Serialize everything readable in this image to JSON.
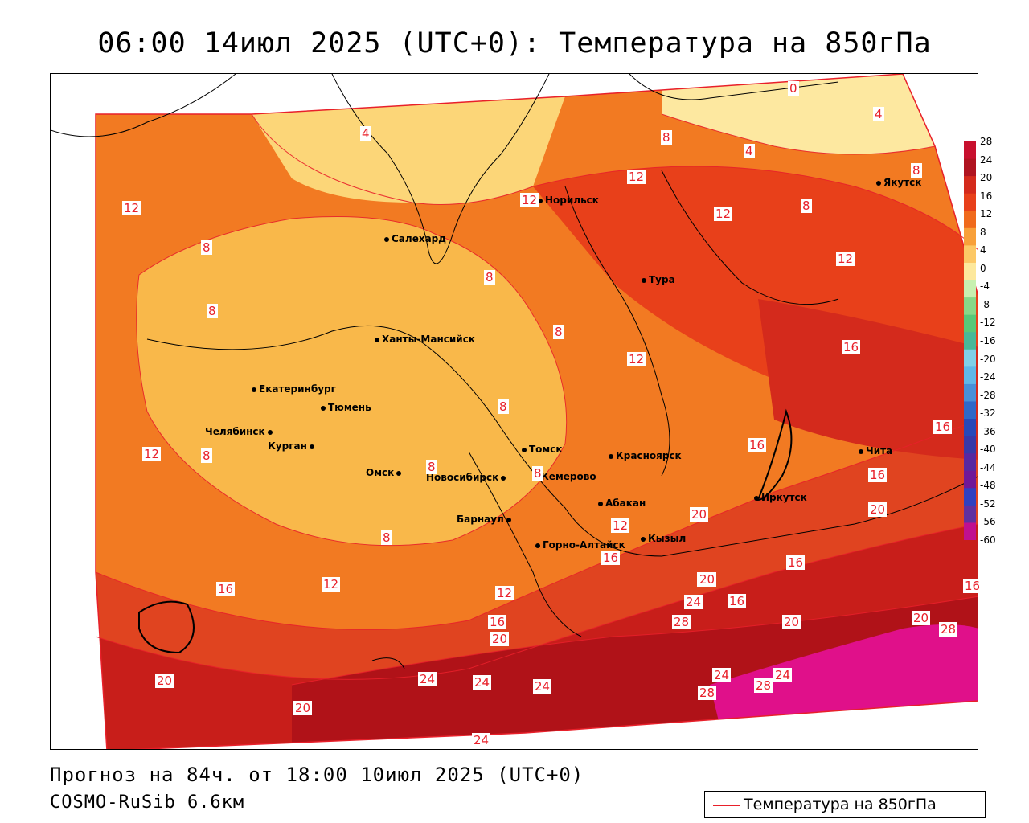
{
  "title": "06:00 14июл 2025 (UTC+0): Температура на 850гПа",
  "footer": {
    "forecast": "Прогноз на 84ч. от 18:00 10июл 2025 (UTC+0)",
    "model": "COSMO-RuSib 6.6км"
  },
  "legend": {
    "label": "Температура на 850гПа",
    "line_color": "#e8202a"
  },
  "colorbar": {
    "ticks": [
      "28",
      "24",
      "20",
      "16",
      "12",
      "8",
      "4",
      "0",
      "-4",
      "-8",
      "-12",
      "-16",
      "-20",
      "-24",
      "-28",
      "-32",
      "-36",
      "-40",
      "-44",
      "-48",
      "-52",
      "-56",
      "-60"
    ],
    "colors": [
      "#c8102e",
      "#b01420",
      "#d42a1c",
      "#e8401a",
      "#f06a1c",
      "#f8a03a",
      "#fcc866",
      "#fde89c",
      "#c8f0b0",
      "#88d888",
      "#58c878",
      "#48b898",
      "#80d0e8",
      "#60b8e8",
      "#4890d8",
      "#3068c8",
      "#2848b8",
      "#3838a8",
      "#5828a0",
      "#701898",
      "#3040c0",
      "#6030a0",
      "#c01090"
    ]
  },
  "cities": [
    {
      "name": "Норильск"
    },
    {
      "name": "Якутск"
    },
    {
      "name": "Салехард"
    },
    {
      "name": "Тура"
    },
    {
      "name": "Ханты-Мансийск"
    },
    {
      "name": "Екатеринбург"
    },
    {
      "name": "Тюмень"
    },
    {
      "name": "Челябинск"
    },
    {
      "name": "Курган"
    },
    {
      "name": "Омск"
    },
    {
      "name": "Новосибирск"
    },
    {
      "name": "Томск"
    },
    {
      "name": "Кемерово"
    },
    {
      "name": "Красноярск"
    },
    {
      "name": "Абакан"
    },
    {
      "name": "Барнаул"
    },
    {
      "name": "Горно-Алтайск"
    },
    {
      "name": "Кызыл"
    },
    {
      "name": "Иркутск"
    },
    {
      "name": "Чита"
    }
  ],
  "contour_labels": [
    "0",
    "4",
    "4",
    "4",
    "8",
    "8",
    "12",
    "12",
    "12",
    "12",
    "8",
    "8",
    "8",
    "8",
    "8",
    "8",
    "12",
    "16",
    "16",
    "16",
    "12",
    "12",
    "8",
    "8",
    "8",
    "8",
    "12",
    "12",
    "16",
    "12",
    "16",
    "16",
    "20",
    "20",
    "20",
    "16",
    "20",
    "24",
    "28",
    "20",
    "20",
    "28",
    "24",
    "24",
    "24",
    "20",
    "24",
    "28",
    "28",
    "24",
    "20",
    "24",
    "16",
    "16",
    "16",
    "20"
  ]
}
